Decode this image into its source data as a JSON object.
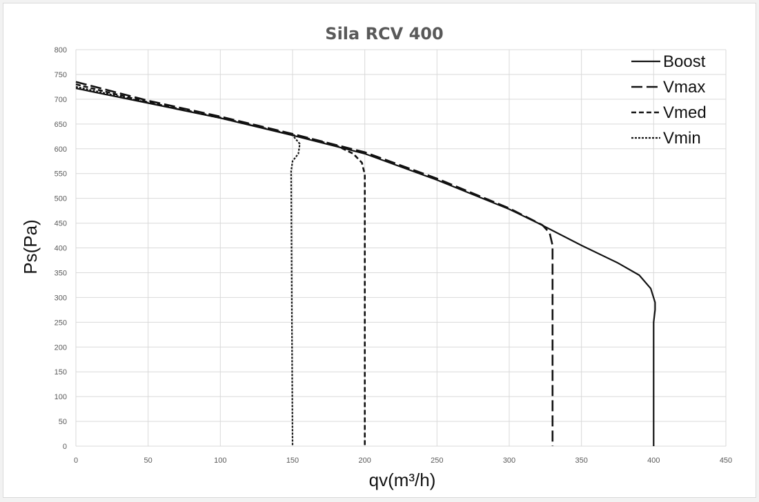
{
  "chart_data": {
    "type": "line",
    "title": "Sila RCV 400",
    "xlabel": "qv(m³/h)",
    "ylabel": "Ps(Pa)",
    "xlim": [
      0,
      450
    ],
    "ylim": [
      0,
      800
    ],
    "xticks": [
      0,
      50,
      100,
      150,
      200,
      250,
      300,
      350,
      400,
      450
    ],
    "yticks": [
      0,
      50,
      100,
      150,
      200,
      250,
      300,
      350,
      400,
      450,
      500,
      550,
      600,
      650,
      700,
      750,
      800
    ],
    "grid": true,
    "legend_position": "top-right",
    "series": [
      {
        "name": "Boost",
        "line_style": "solid",
        "points": [
          [
            0,
            722
          ],
          [
            50,
            692
          ],
          [
            100,
            662
          ],
          [
            150,
            627
          ],
          [
            200,
            590
          ],
          [
            250,
            537
          ],
          [
            300,
            478
          ],
          [
            320,
            450
          ],
          [
            350,
            405
          ],
          [
            375,
            370
          ],
          [
            390,
            345
          ],
          [
            398,
            318
          ],
          [
            401,
            290
          ],
          [
            401,
            275
          ],
          [
            400,
            250
          ],
          [
            400,
            0
          ]
        ]
      },
      {
        "name": "Vmax",
        "line_style": "long-dash",
        "points": [
          [
            0,
            735
          ],
          [
            50,
            697
          ],
          [
            100,
            665
          ],
          [
            150,
            630
          ],
          [
            200,
            593
          ],
          [
            250,
            540
          ],
          [
            300,
            480
          ],
          [
            323,
            446
          ],
          [
            328,
            430
          ],
          [
            330,
            405
          ],
          [
            330,
            370
          ],
          [
            330,
            0
          ]
        ]
      },
      {
        "name": "Vmed",
        "line_style": "dash",
        "points": [
          [
            0,
            730
          ],
          [
            50,
            694
          ],
          [
            100,
            663
          ],
          [
            150,
            628
          ],
          [
            180,
            607
          ],
          [
            192,
            590
          ],
          [
            198,
            572
          ],
          [
            200,
            548
          ],
          [
            200,
            520
          ],
          [
            200,
            0
          ]
        ]
      },
      {
        "name": "Vmin",
        "line_style": "short-dash",
        "points": [
          [
            0,
            725
          ],
          [
            50,
            693
          ],
          [
            100,
            662
          ],
          [
            140,
            635
          ],
          [
            150,
            627
          ],
          [
            155,
            610
          ],
          [
            154,
            590
          ],
          [
            150,
            575
          ],
          [
            149,
            555
          ],
          [
            150,
            0
          ]
        ]
      }
    ]
  }
}
